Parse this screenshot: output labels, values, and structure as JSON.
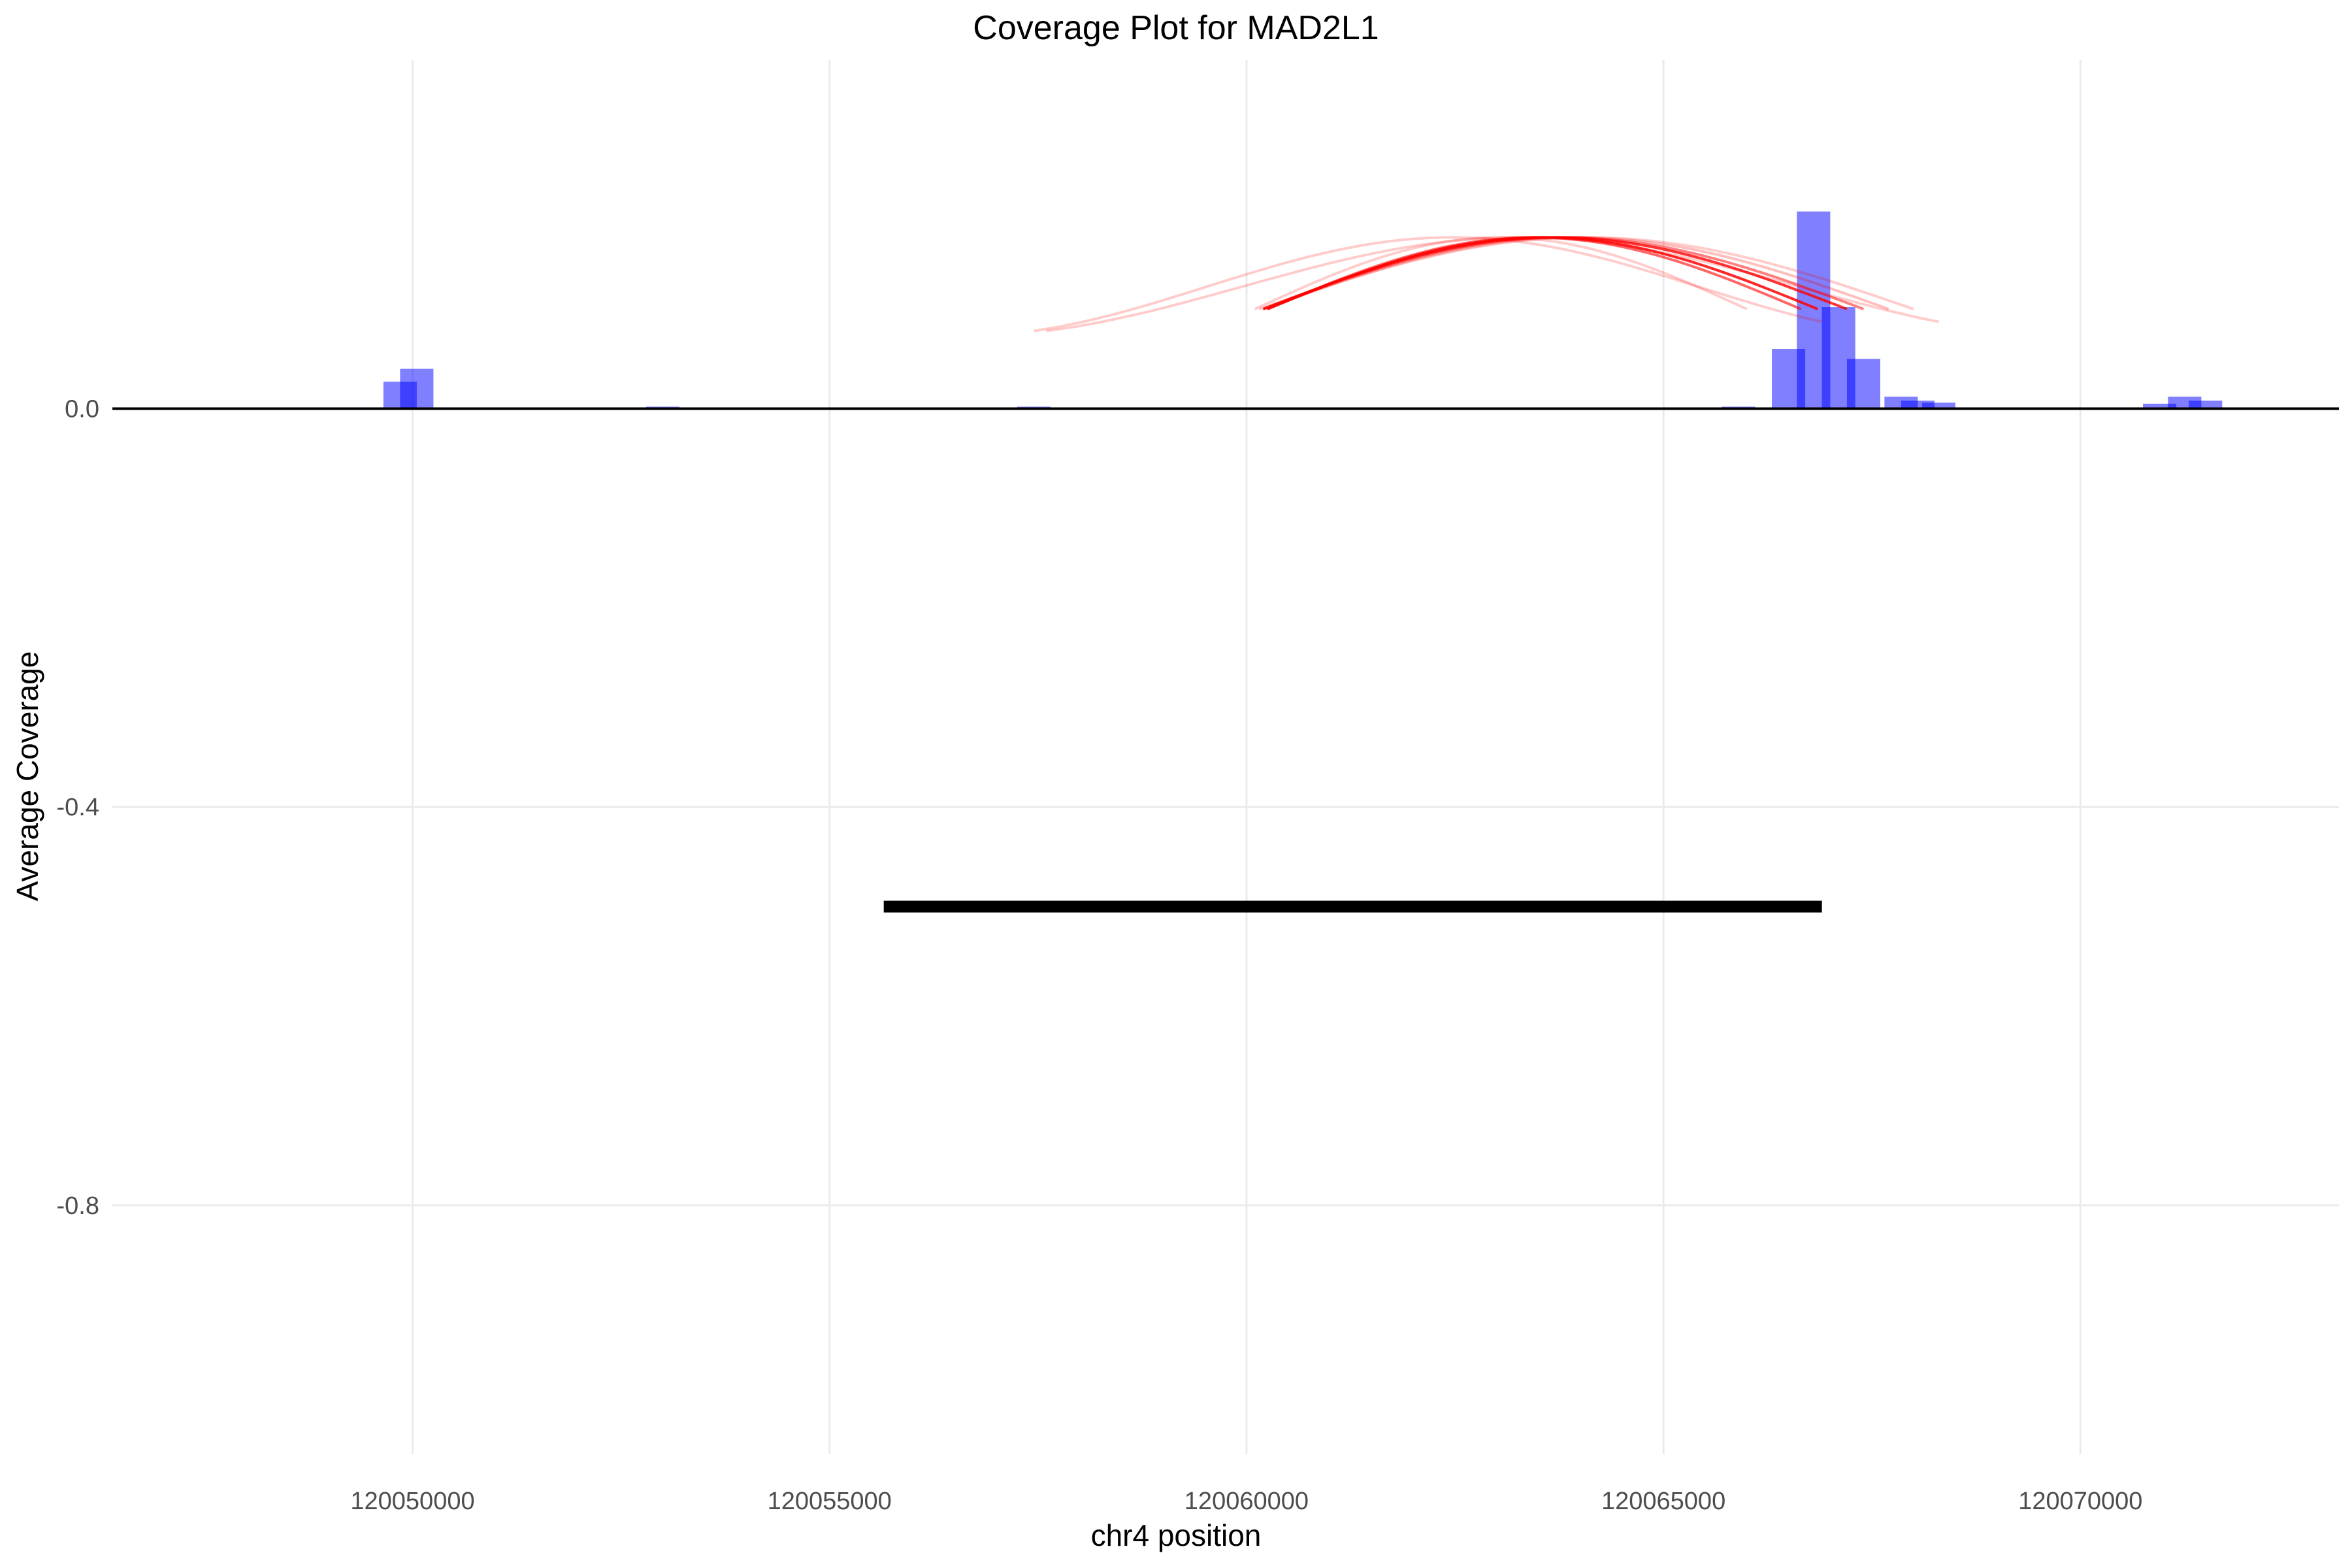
{
  "chart_data": {
    "type": "bar",
    "title": "Coverage Plot for MAD2L1",
    "xlabel": "chr4 position",
    "ylabel": "Average Coverage",
    "xlim": [
      120046400,
      120073100
    ],
    "ylim": [
      -1.05,
      0.35
    ],
    "x_ticks": [
      120050000,
      120055000,
      120060000,
      120065000,
      120070000
    ],
    "x_tick_labels": [
      "120050000",
      "120055000",
      "120060000",
      "120065000",
      "120070000"
    ],
    "y_ticks": [
      0.0,
      -0.4,
      -0.8
    ],
    "y_tick_labels": [
      "0.0",
      "-0.4",
      "-0.8"
    ],
    "grid": true,
    "colors": {
      "coverage": "#0000ff",
      "junction": "#ff0000",
      "gene": "#000000",
      "baseline": "#000000"
    },
    "coverage_bars": [
      {
        "x": 120049850,
        "value": 0.027
      },
      {
        "x": 120050050,
        "value": 0.04
      },
      {
        "x": 120053000,
        "value": 0.002
      },
      {
        "x": 120057450,
        "value": 0.002
      },
      {
        "x": 120065900,
        "value": 0.002
      },
      {
        "x": 120066500,
        "value": 0.06
      },
      {
        "x": 120066800,
        "value": 0.198
      },
      {
        "x": 120067100,
        "value": 0.102
      },
      {
        "x": 120067400,
        "value": 0.05
      },
      {
        "x": 120067850,
        "value": 0.012
      },
      {
        "x": 120068050,
        "value": 0.008
      },
      {
        "x": 120068300,
        "value": 0.006
      },
      {
        "x": 120070950,
        "value": 0.005
      },
      {
        "x": 120071250,
        "value": 0.012
      },
      {
        "x": 120071500,
        "value": 0.008
      }
    ],
    "junction_arcs": [
      {
        "start": 120057450,
        "end": 120066900,
        "opacity": 0.2
      },
      {
        "start": 120057600,
        "end": 120068300,
        "opacity": 0.2
      },
      {
        "start": 120060100,
        "end": 120066000,
        "opacity": 0.2
      },
      {
        "start": 120060150,
        "end": 120068000,
        "opacity": 0.2
      },
      {
        "start": 120060200,
        "end": 120067700,
        "opacity": 0.25
      },
      {
        "start": 120060200,
        "end": 120067400,
        "opacity": 0.5
      },
      {
        "start": 120060200,
        "end": 120067200,
        "opacity": 0.8
      },
      {
        "start": 120060250,
        "end": 120066850,
        "opacity": 0.85
      },
      {
        "start": 120060250,
        "end": 120066650,
        "opacity": 0.6
      }
    ],
    "gene_segment": {
      "start": 120055650,
      "end": 120066900,
      "y": -0.5
    }
  }
}
